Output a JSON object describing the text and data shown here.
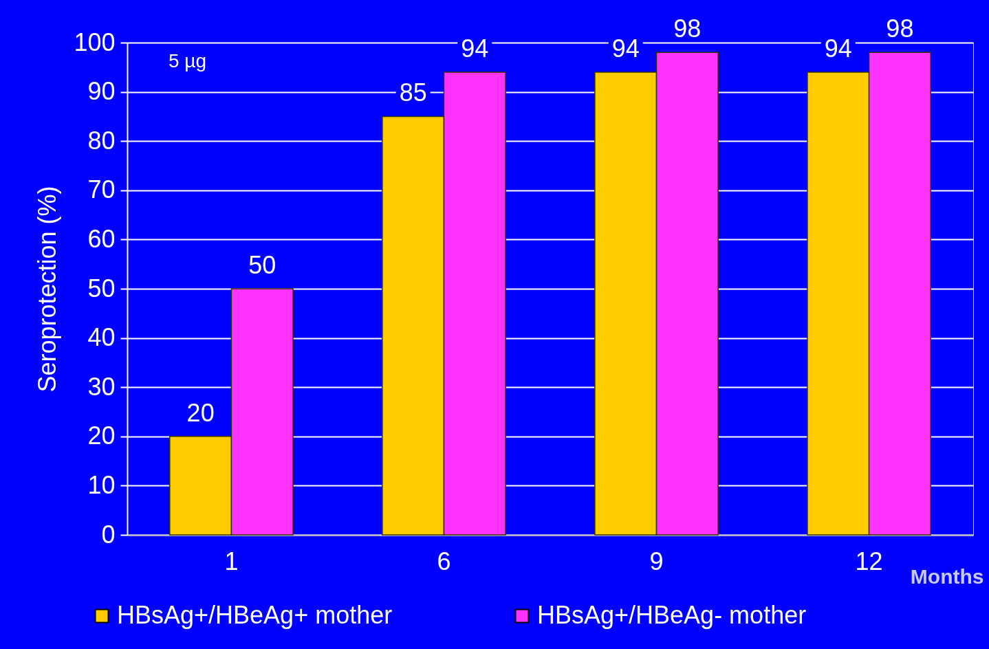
{
  "chart_data": {
    "type": "bar",
    "categories": [
      "1",
      "6",
      "9",
      "12"
    ],
    "xlabel": "Months",
    "ylabel": "Seroprotection (%)",
    "ylim": [
      0,
      100
    ],
    "yticks": [
      0,
      10,
      20,
      30,
      40,
      50,
      60,
      70,
      80,
      90,
      100
    ],
    "grid": "y",
    "legend": "bottom",
    "data_labels": true,
    "annotations": [
      "5 µg"
    ],
    "series": [
      {
        "name": "HBsAg+/HBeAg+ mother",
        "color": "#ffcc00",
        "values": [
          20,
          85,
          94,
          94
        ]
      },
      {
        "name": "HBsAg+/HBeAg- mother",
        "color": "#ff33ff",
        "values": [
          50,
          94,
          98,
          98
        ]
      }
    ]
  }
}
